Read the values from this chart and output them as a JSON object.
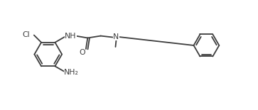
{
  "bg_color": "#ffffff",
  "line_color": "#3d3d3d",
  "text_color": "#3d3d3d",
  "lw": 1.3,
  "fs": 7.8,
  "figsize": [
    3.63,
    1.55
  ],
  "dpi": 100,
  "xlim": [
    -0.3,
    7.2
  ],
  "ylim": [
    -0.7,
    2.1
  ]
}
